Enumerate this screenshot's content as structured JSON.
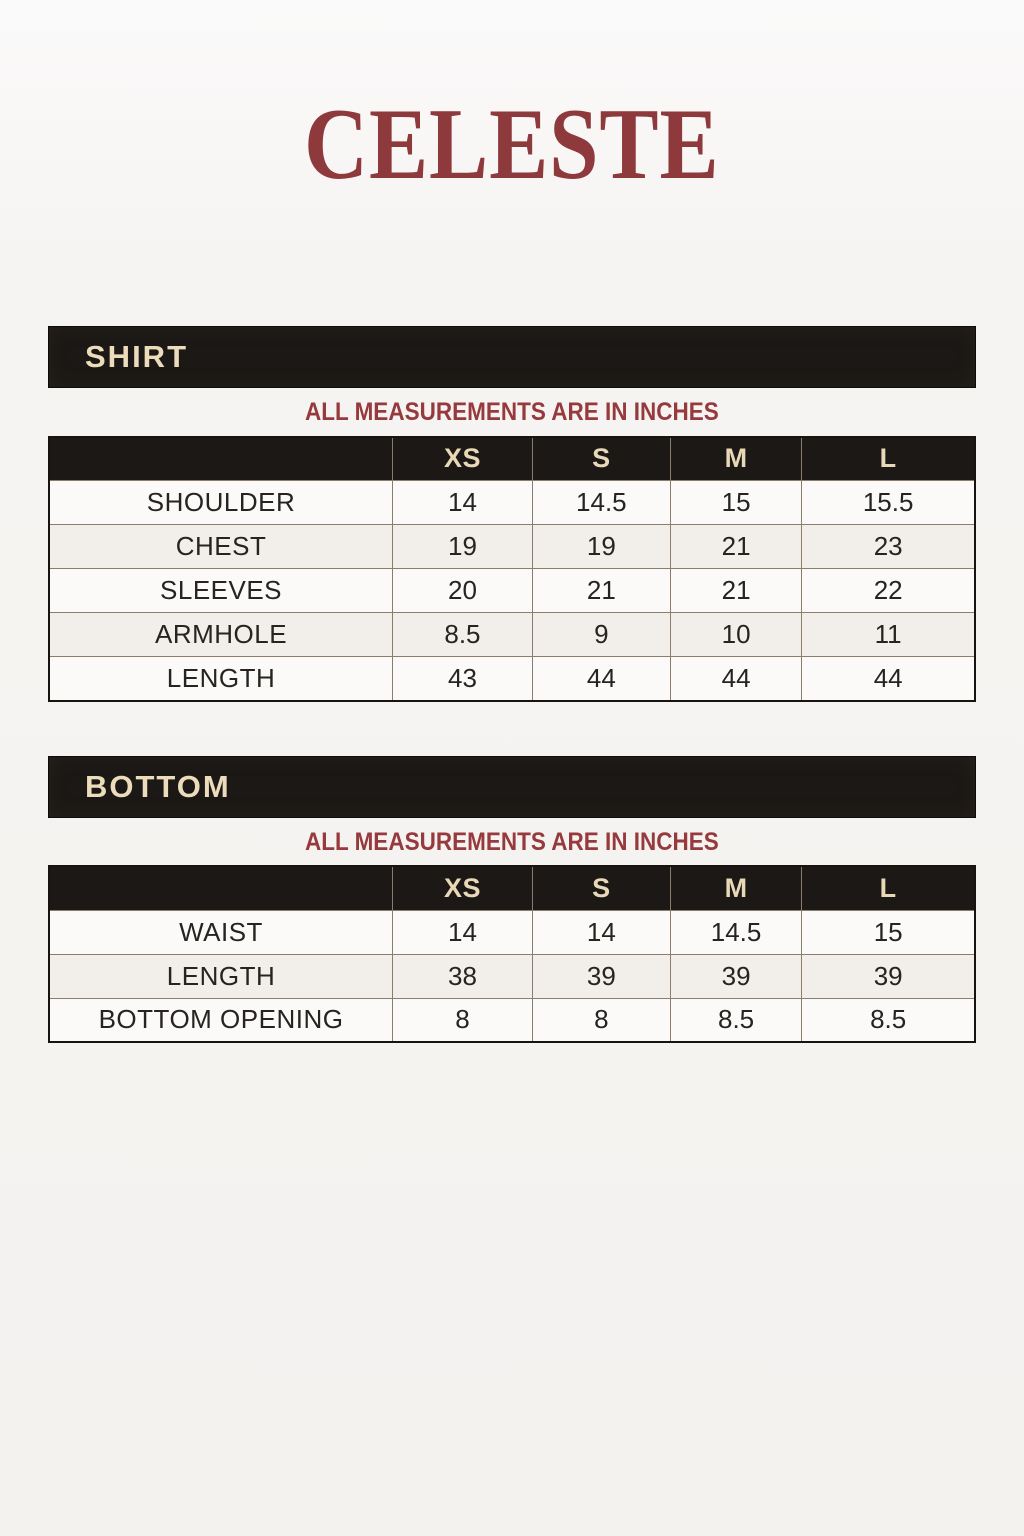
{
  "title": "CELESTE",
  "colors": {
    "accent_red": "#8e393c",
    "bar_black": "#1b1815",
    "cream_text": "#e9d8b8",
    "page_background": "#f4f2ef",
    "row_alt_background": "#f2efeb",
    "cell_border": "#8b7d6d"
  },
  "sections": [
    {
      "heading": "SHIRT",
      "note": "ALL MEASUREMENTS ARE IN INCHES",
      "size_columns": [
        "XS",
        "S",
        "M",
        "L"
      ],
      "rows": [
        {
          "label": "SHOULDER",
          "values": [
            "14",
            "14.5",
            "15",
            "15.5"
          ]
        },
        {
          "label": "CHEST",
          "values": [
            "19",
            "19",
            "21",
            "23"
          ]
        },
        {
          "label": "SLEEVES",
          "values": [
            "20",
            "21",
            "21",
            "22"
          ]
        },
        {
          "label": "ARMHOLE",
          "values": [
            "8.5",
            "9",
            "10",
            "11"
          ]
        },
        {
          "label": "LENGTH",
          "values": [
            "43",
            "44",
            "44",
            "44"
          ]
        }
      ]
    },
    {
      "heading": "BOTTOM",
      "note": "ALL MEASUREMENTS ARE IN INCHES",
      "size_columns": [
        "XS",
        "S",
        "M",
        "L"
      ],
      "rows": [
        {
          "label": "WAIST",
          "values": [
            "14",
            "14",
            "14.5",
            "15"
          ]
        },
        {
          "label": "LENGTH",
          "values": [
            "38",
            "39",
            "39",
            "39"
          ]
        },
        {
          "label": "BOTTOM OPENING",
          "values": [
            "8",
            "8",
            "8.5",
            "8.5"
          ]
        }
      ]
    }
  ]
}
